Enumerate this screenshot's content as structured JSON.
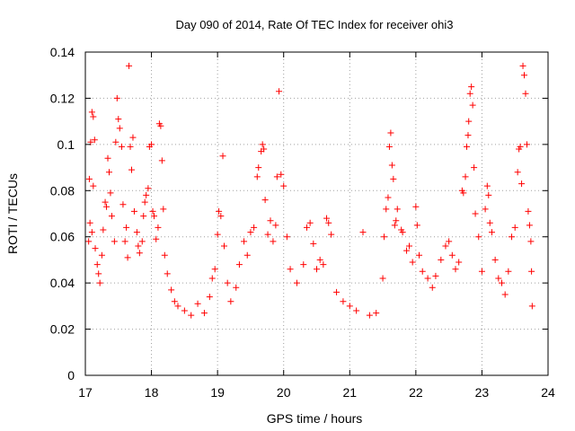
{
  "chart_data": {
    "type": "scatter",
    "title": "Day 090 of 2014, Rate Of TEC Index for receiver ohi3",
    "xlabel": "GPS time / hours",
    "ylabel": "ROTI / TECUs",
    "xlim": [
      17,
      24
    ],
    "ylim": [
      0,
      0.14
    ],
    "x_ticks": [
      17,
      18,
      19,
      20,
      21,
      22,
      23,
      24
    ],
    "x_tick_labels": [
      "17",
      "18",
      "19",
      "20",
      "21",
      "22",
      "23",
      "24"
    ],
    "y_ticks": [
      0,
      0.02,
      0.04,
      0.06,
      0.08,
      0.1,
      0.12,
      0.14
    ],
    "y_tick_labels": [
      "0",
      "0.02",
      "0.04",
      "0.06",
      "0.08",
      "0.1",
      "0.12",
      "0.14"
    ],
    "grid": true,
    "marker": "plus",
    "series": [
      {
        "name": "ROTI",
        "color": "#ff0000",
        "points": [
          [
            17.08,
            0.101
          ],
          [
            17.1,
            0.114
          ],
          [
            17.12,
            0.112
          ],
          [
            17.14,
            0.102
          ],
          [
            17.06,
            0.085
          ],
          [
            17.12,
            0.082
          ],
          [
            17.07,
            0.066
          ],
          [
            17.1,
            0.062
          ],
          [
            17.05,
            0.058
          ],
          [
            17.15,
            0.055
          ],
          [
            17.18,
            0.048
          ],
          [
            17.2,
            0.044
          ],
          [
            17.22,
            0.04
          ],
          [
            17.25,
            0.052
          ],
          [
            17.27,
            0.063
          ],
          [
            17.3,
            0.075
          ],
          [
            17.32,
            0.073
          ],
          [
            17.34,
            0.094
          ],
          [
            17.36,
            0.088
          ],
          [
            17.38,
            0.079
          ],
          [
            17.4,
            0.069
          ],
          [
            17.44,
            0.058
          ],
          [
            17.46,
            0.101
          ],
          [
            17.48,
            0.12
          ],
          [
            17.5,
            0.111
          ],
          [
            17.52,
            0.107
          ],
          [
            17.55,
            0.099
          ],
          [
            17.57,
            0.074
          ],
          [
            17.6,
            0.058
          ],
          [
            17.62,
            0.064
          ],
          [
            17.64,
            0.051
          ],
          [
            17.66,
            0.134
          ],
          [
            17.68,
            0.099
          ],
          [
            17.7,
            0.089
          ],
          [
            17.72,
            0.103
          ],
          [
            17.74,
            0.071
          ],
          [
            17.78,
            0.062
          ],
          [
            17.8,
            0.056
          ],
          [
            17.82,
            0.053
          ],
          [
            17.86,
            0.058
          ],
          [
            17.88,
            0.069
          ],
          [
            17.9,
            0.075
          ],
          [
            17.92,
            0.078
          ],
          [
            17.95,
            0.081
          ],
          [
            17.97,
            0.099
          ],
          [
            18.0,
            0.1
          ],
          [
            18.02,
            0.071
          ],
          [
            18.04,
            0.069
          ],
          [
            18.07,
            0.059
          ],
          [
            18.1,
            0.064
          ],
          [
            18.12,
            0.109
          ],
          [
            18.14,
            0.108
          ],
          [
            18.16,
            0.093
          ],
          [
            18.18,
            0.072
          ],
          [
            18.2,
            0.052
          ],
          [
            18.24,
            0.044
          ],
          [
            18.3,
            0.037
          ],
          [
            18.35,
            0.032
          ],
          [
            18.4,
            0.03
          ],
          [
            18.5,
            0.028
          ],
          [
            18.6,
            0.026
          ],
          [
            18.7,
            0.031
          ],
          [
            18.8,
            0.027
          ],
          [
            18.88,
            0.034
          ],
          [
            18.92,
            0.042
          ],
          [
            18.96,
            0.046
          ],
          [
            19.0,
            0.061
          ],
          [
            19.02,
            0.071
          ],
          [
            19.05,
            0.069
          ],
          [
            19.08,
            0.095
          ],
          [
            19.1,
            0.056
          ],
          [
            19.15,
            0.04
          ],
          [
            19.2,
            0.032
          ],
          [
            19.28,
            0.038
          ],
          [
            19.33,
            0.048
          ],
          [
            19.4,
            0.058
          ],
          [
            19.45,
            0.052
          ],
          [
            19.5,
            0.062
          ],
          [
            19.55,
            0.064
          ],
          [
            19.6,
            0.086
          ],
          [
            19.62,
            0.09
          ],
          [
            19.66,
            0.097
          ],
          [
            19.68,
            0.1
          ],
          [
            19.7,
            0.098
          ],
          [
            19.72,
            0.076
          ],
          [
            19.76,
            0.061
          ],
          [
            19.8,
            0.067
          ],
          [
            19.84,
            0.058
          ],
          [
            19.88,
            0.065
          ],
          [
            19.9,
            0.086
          ],
          [
            19.93,
            0.123
          ],
          [
            19.96,
            0.087
          ],
          [
            20.0,
            0.082
          ],
          [
            20.05,
            0.06
          ],
          [
            20.1,
            0.046
          ],
          [
            20.2,
            0.04
          ],
          [
            20.3,
            0.048
          ],
          [
            20.35,
            0.064
          ],
          [
            20.4,
            0.066
          ],
          [
            20.45,
            0.057
          ],
          [
            20.5,
            0.046
          ],
          [
            20.55,
            0.05
          ],
          [
            20.6,
            0.048
          ],
          [
            20.65,
            0.068
          ],
          [
            20.68,
            0.066
          ],
          [
            20.72,
            0.061
          ],
          [
            20.8,
            0.036
          ],
          [
            20.9,
            0.032
          ],
          [
            21.0,
            0.03
          ],
          [
            21.1,
            0.028
          ],
          [
            21.2,
            0.062
          ],
          [
            21.3,
            0.026
          ],
          [
            21.4,
            0.027
          ],
          [
            21.5,
            0.042
          ],
          [
            21.52,
            0.06
          ],
          [
            21.55,
            0.072
          ],
          [
            21.58,
            0.077
          ],
          [
            21.6,
            0.099
          ],
          [
            21.62,
            0.105
          ],
          [
            21.64,
            0.091
          ],
          [
            21.66,
            0.085
          ],
          [
            21.68,
            0.065
          ],
          [
            21.7,
            0.067
          ],
          [
            21.72,
            0.072
          ],
          [
            21.78,
            0.063
          ],
          [
            21.8,
            0.062
          ],
          [
            21.86,
            0.054
          ],
          [
            21.9,
            0.056
          ],
          [
            21.95,
            0.049
          ],
          [
            22.0,
            0.073
          ],
          [
            22.02,
            0.065
          ],
          [
            22.05,
            0.052
          ],
          [
            22.1,
            0.045
          ],
          [
            22.18,
            0.042
          ],
          [
            22.25,
            0.038
          ],
          [
            22.3,
            0.043
          ],
          [
            22.38,
            0.05
          ],
          [
            22.45,
            0.056
          ],
          [
            22.5,
            0.058
          ],
          [
            22.55,
            0.052
          ],
          [
            22.6,
            0.046
          ],
          [
            22.65,
            0.049
          ],
          [
            22.7,
            0.08
          ],
          [
            22.72,
            0.079
          ],
          [
            22.75,
            0.086
          ],
          [
            22.77,
            0.099
          ],
          [
            22.79,
            0.104
          ],
          [
            22.8,
            0.11
          ],
          [
            22.82,
            0.122
          ],
          [
            22.84,
            0.125
          ],
          [
            22.86,
            0.117
          ],
          [
            22.88,
            0.09
          ],
          [
            22.9,
            0.07
          ],
          [
            22.95,
            0.06
          ],
          [
            23.0,
            0.045
          ],
          [
            23.05,
            0.072
          ],
          [
            23.08,
            0.082
          ],
          [
            23.1,
            0.078
          ],
          [
            23.12,
            0.066
          ],
          [
            23.15,
            0.062
          ],
          [
            23.2,
            0.05
          ],
          [
            23.25,
            0.042
          ],
          [
            23.3,
            0.04
          ],
          [
            23.35,
            0.035
          ],
          [
            23.4,
            0.045
          ],
          [
            23.45,
            0.06
          ],
          [
            23.5,
            0.064
          ],
          [
            23.54,
            0.088
          ],
          [
            23.56,
            0.098
          ],
          [
            23.58,
            0.099
          ],
          [
            23.6,
            0.083
          ],
          [
            23.62,
            0.134
          ],
          [
            23.64,
            0.13
          ],
          [
            23.66,
            0.122
          ],
          [
            23.68,
            0.1
          ],
          [
            23.7,
            0.071
          ],
          [
            23.72,
            0.065
          ],
          [
            23.74,
            0.058
          ],
          [
            23.75,
            0.045
          ],
          [
            23.76,
            0.03
          ]
        ]
      }
    ]
  }
}
